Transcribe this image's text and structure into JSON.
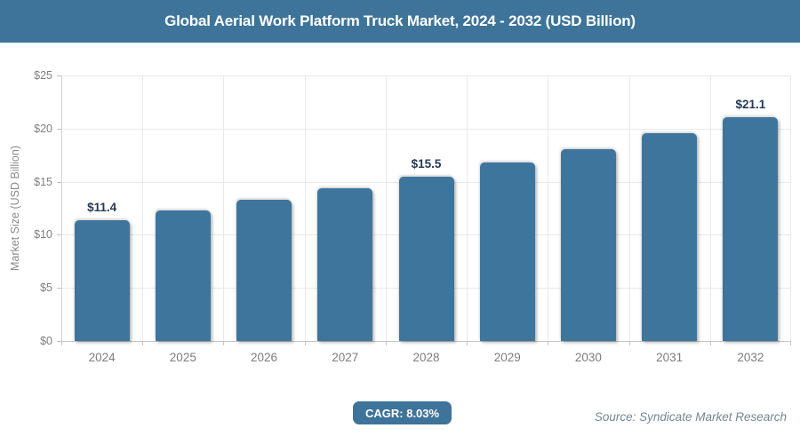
{
  "header": {
    "title": "Global Aerial Work Platform Truck Market, 2024 - 2032 (USD Billion)"
  },
  "chart_data": {
    "type": "bar",
    "title": "Global Aerial Work Platform Truck Market, 2024 - 2032 (USD Billion)",
    "categories": [
      "2024",
      "2025",
      "2026",
      "2027",
      "2028",
      "2029",
      "2030",
      "2031",
      "2032"
    ],
    "values": [
      11.4,
      12.3,
      13.3,
      14.4,
      15.5,
      16.8,
      18.1,
      19.6,
      21.1
    ],
    "data_labels": [
      "$11.4",
      "",
      "",
      "",
      "$15.5",
      "",
      "",
      "",
      "$21.1"
    ],
    "xlabel": "",
    "ylabel": "Market Size (USD Billion)",
    "ylim": [
      0,
      25
    ],
    "y_tick_step": 5,
    "y_ticks": [
      "$0",
      "$5",
      "$10",
      "$15",
      "$20",
      "$25"
    ],
    "grid": "on",
    "legend": "none",
    "bar_color": "#3e759d",
    "data_label_color": "#273a53"
  },
  "footer": {
    "cagr_label": "CAGR: 8.03%",
    "source": "Source: Syndicate Market Research"
  },
  "colors": {
    "header_bg": "#3e7499",
    "accent": "#3e759d",
    "axis_text": "#7f7f7f",
    "gridline": "#e9e9e9",
    "background": "#ffffff"
  }
}
